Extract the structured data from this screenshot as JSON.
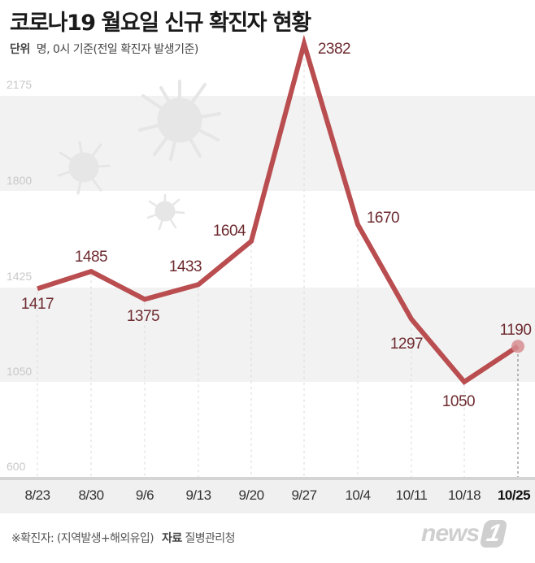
{
  "header": {
    "title": "코로나19 월요일 신규 확진자 현황",
    "unit_label": "단위",
    "unit_text": "명, 0시 기준(전일 확진자 발생기준)"
  },
  "footer": {
    "note": "※확진자: (지역발생+해외유입)",
    "source_label": "자료",
    "source": "질병관리청",
    "logo_text": "news",
    "logo_num": "1"
  },
  "colors": {
    "line": "#b94d4f",
    "label": "#6e2b30",
    "band": "#f2f2f2",
    "axis_bar": "#f0f0f0"
  },
  "chart_data": {
    "type": "line",
    "title": "코로나19 월요일 신규 확진자 현황",
    "subtitle": "단위 명, 0시 기준(전일 확진자 발생기준)",
    "xlabel": "",
    "ylabel": "명",
    "categories": [
      "8/23",
      "8/30",
      "9/6",
      "9/13",
      "9/20",
      "9/27",
      "10/4",
      "10/11",
      "10/18",
      "10/25"
    ],
    "series": [
      {
        "name": "신규 확진자",
        "values": [
          1417,
          1485,
          1375,
          1433,
          1604,
          2382,
          1670,
          1297,
          1050,
          1190
        ]
      }
    ],
    "yticks": [
      "2175",
      "1800",
      "1425",
      "1050",
      "600"
    ],
    "ylim": [
      600,
      2382
    ],
    "grid": "alternating horizontal bands",
    "highlight": "10/25",
    "annotations": [
      "※확진자: (지역발생+해외유입)",
      "자료 질병관리청"
    ]
  }
}
